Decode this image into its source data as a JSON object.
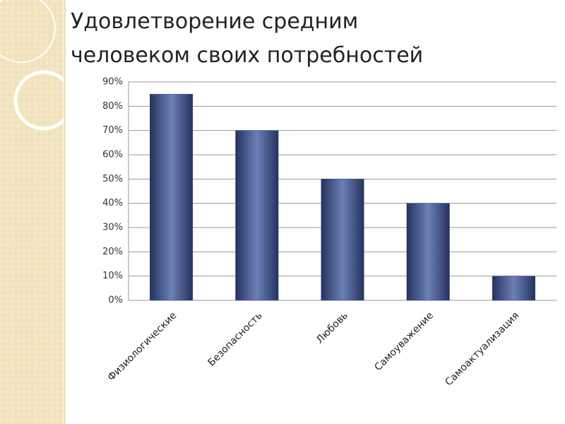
{
  "chart_data": {
    "type": "bar",
    "title": [
      "Удовлетворение средним",
      "человеком своих потребностей"
    ],
    "categories": [
      "Физиологические",
      "Безопасность",
      "Любовь",
      "Самоуважение",
      "Самоактуализация"
    ],
    "values": [
      85,
      70,
      50,
      40,
      10
    ],
    "color": "#3b4c85",
    "ylim": [
      0,
      90
    ],
    "yticks": [
      {
        "value": 0,
        "label": "0%"
      },
      {
        "value": 10,
        "label": "10%"
      },
      {
        "value": 20,
        "label": "20%"
      },
      {
        "value": 30,
        "label": "30%"
      },
      {
        "value": 40,
        "label": "40%"
      },
      {
        "value": 50,
        "label": "50%"
      },
      {
        "value": 60,
        "label": "60%"
      },
      {
        "value": 70,
        "label": "70%"
      },
      {
        "value": 80,
        "label": "80%"
      },
      {
        "value": 90,
        "label": "90%"
      }
    ],
    "grid": true
  }
}
